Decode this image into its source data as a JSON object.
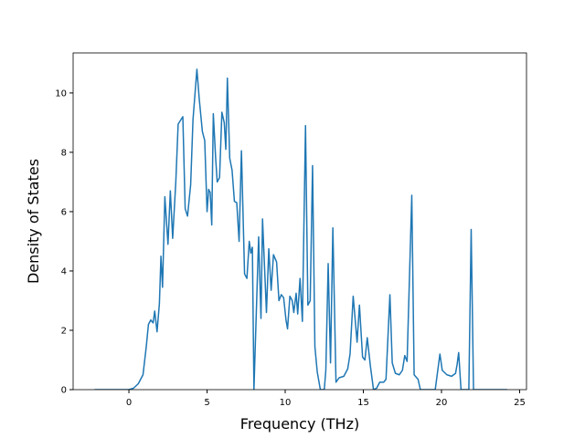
{
  "chart_data": {
    "type": "line",
    "xlabel": "Frequency (THz)",
    "ylabel": "Density of States",
    "x": [
      -2.2,
      -1,
      0,
      0.3,
      0.6,
      0.9,
      1.1,
      1.25,
      1.4,
      1.55,
      1.65,
      1.8,
      1.95,
      2.05,
      2.15,
      2.3,
      2.5,
      2.65,
      2.8,
      3.0,
      3.15,
      3.45,
      3.6,
      3.75,
      3.95,
      4.1,
      4.35,
      4.5,
      4.7,
      4.85,
      5.0,
      5.1,
      5.2,
      5.3,
      5.4,
      5.55,
      5.65,
      5.8,
      5.95,
      6.1,
      6.2,
      6.3,
      6.45,
      6.6,
      6.75,
      6.9,
      7.05,
      7.2,
      7.4,
      7.55,
      7.7,
      7.8,
      7.9,
      8.0,
      8.3,
      8.45,
      8.55,
      8.8,
      8.95,
      9.1,
      9.25,
      9.45,
      9.6,
      9.75,
      9.9,
      10.05,
      10.15,
      10.3,
      10.45,
      10.55,
      10.7,
      10.8,
      10.95,
      11.1,
      11.3,
      11.45,
      11.6,
      11.75,
      11.9,
      12.05,
      12.25,
      12.5,
      12.6,
      12.75,
      12.9,
      13.05,
      13.25,
      13.45,
      13.75,
      14.0,
      14.15,
      14.35,
      14.6,
      14.75,
      14.95,
      15.1,
      15.25,
      15.45,
      15.65,
      15.85,
      16.05,
      16.3,
      16.45,
      16.7,
      16.85,
      17.05,
      17.3,
      17.5,
      17.65,
      17.8,
      18.1,
      18.25,
      18.5,
      18.65,
      19.6,
      19.9,
      20.05,
      20.35,
      20.65,
      20.9,
      21.0,
      21.1,
      21.25,
      21.75,
      21.9,
      22.05,
      24.2
    ],
    "series": [
      {
        "color": "#1f77b4",
        "values": [
          0,
          0,
          0,
          0.05,
          0.2,
          0.5,
          1.4,
          2.2,
          2.35,
          2.25,
          2.65,
          1.95,
          2.9,
          4.5,
          3.45,
          6.5,
          4.9,
          6.7,
          5.1,
          7.0,
          8.95,
          9.2,
          6.1,
          5.85,
          6.9,
          9.1,
          10.8,
          9.8,
          8.7,
          8.4,
          6.0,
          6.75,
          6.65,
          5.55,
          9.3,
          7.8,
          7.0,
          7.15,
          9.35,
          9.0,
          8.1,
          10.5,
          7.8,
          7.4,
          6.35,
          6.3,
          5.0,
          8.05,
          3.9,
          3.75,
          5.0,
          4.6,
          4.8,
          0,
          5.15,
          2.4,
          5.75,
          2.6,
          4.75,
          3.35,
          4.55,
          4.3,
          3.0,
          3.2,
          3.1,
          2.35,
          2.05,
          3.15,
          3.0,
          2.6,
          3.25,
          2.55,
          3.75,
          2.3,
          8.9,
          2.85,
          3.0,
          7.55,
          1.45,
          0.6,
          0,
          0,
          0.65,
          4.25,
          0.9,
          5.45,
          0.25,
          0.4,
          0.45,
          0.7,
          1.2,
          3.15,
          1.6,
          2.85,
          1.1,
          1.0,
          1.75,
          0.8,
          0,
          0.05,
          0.25,
          0.25,
          0.35,
          3.2,
          0.9,
          0.55,
          0.5,
          0.65,
          1.15,
          0.95,
          6.55,
          0.5,
          0.35,
          0,
          0,
          1.2,
          0.65,
          0.5,
          0.45,
          0.55,
          0.85,
          1.25,
          0,
          0,
          5.4,
          0,
          0
        ]
      }
    ],
    "xlim": [
      -3.57,
      25.44
    ],
    "ylim": [
      0,
      11.35
    ],
    "xticks": [
      0,
      5,
      10,
      15,
      20,
      25
    ],
    "yticks": [
      0,
      2,
      4,
      6,
      8,
      10
    ],
    "grid": false
  }
}
